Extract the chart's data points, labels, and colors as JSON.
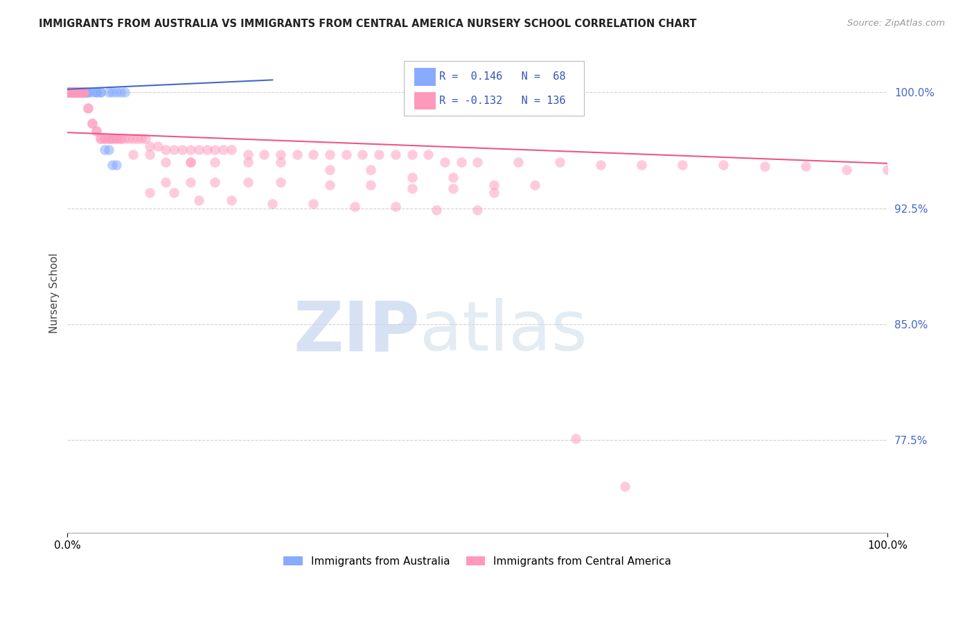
{
  "title": "IMMIGRANTS FROM AUSTRALIA VS IMMIGRANTS FROM CENTRAL AMERICA NURSERY SCHOOL CORRELATION CHART",
  "source": "Source: ZipAtlas.com",
  "ylabel": "Nursery School",
  "xlim": [
    0.0,
    1.0
  ],
  "ylim": [
    0.715,
    1.025
  ],
  "yticks": [
    0.775,
    0.85,
    0.925,
    1.0
  ],
  "ytick_labels": [
    "77.5%",
    "85.0%",
    "92.5%",
    "100.0%"
  ],
  "xticks": [
    0.0,
    1.0
  ],
  "xtick_labels": [
    "0.0%",
    "100.0%"
  ],
  "legend_R1": "0.146",
  "legend_N1": "68",
  "legend_R2": "-0.132",
  "legend_N2": "136",
  "color_blue": "#88AAFF",
  "color_pink": "#FF99BB",
  "trend_blue": "#4466CC",
  "trend_pink": "#EE5588",
  "watermark_zip": "ZIP",
  "watermark_atlas": "atlas",
  "label_australia": "Immigrants from Australia",
  "label_central": "Immigrants from Central America",
  "blue_x": [
    0.001,
    0.001,
    0.002,
    0.002,
    0.003,
    0.003,
    0.004,
    0.004,
    0.005,
    0.005,
    0.006,
    0.006,
    0.007,
    0.007,
    0.008,
    0.008,
    0.009,
    0.009,
    0.01,
    0.01,
    0.011,
    0.012,
    0.013,
    0.014,
    0.015,
    0.016,
    0.017,
    0.018,
    0.019,
    0.02,
    0.021,
    0.022,
    0.001,
    0.001,
    0.002,
    0.003,
    0.004,
    0.005,
    0.006,
    0.007,
    0.008,
    0.009,
    0.01,
    0.011,
    0.012,
    0.013,
    0.014,
    0.015,
    0.016,
    0.017,
    0.02,
    0.025,
    0.03,
    0.035,
    0.04,
    0.018,
    0.025,
    0.035,
    0.04,
    0.05,
    0.055,
    0.06,
    0.065,
    0.07,
    0.045,
    0.05,
    0.055,
    0.06
  ],
  "blue_y": [
    1.0,
    1.0,
    1.0,
    1.0,
    1.0,
    1.0,
    1.0,
    1.0,
    1.0,
    1.0,
    1.0,
    1.0,
    1.0,
    1.0,
    1.0,
    1.0,
    1.0,
    1.0,
    1.0,
    1.0,
    1.0,
    1.0,
    1.0,
    1.0,
    1.0,
    1.0,
    1.0,
    1.0,
    1.0,
    1.0,
    1.0,
    1.0,
    1.0,
    1.0,
    1.0,
    1.0,
    1.0,
    1.0,
    1.0,
    1.0,
    1.0,
    1.0,
    1.0,
    1.0,
    1.0,
    1.0,
    1.0,
    1.0,
    1.0,
    1.0,
    1.0,
    1.0,
    1.0,
    1.0,
    1.0,
    1.0,
    1.0,
    1.0,
    1.0,
    1.0,
    1.0,
    1.0,
    1.0,
    1.0,
    0.963,
    0.963,
    0.953,
    0.953
  ],
  "pink_x": [
    0.001,
    0.001,
    0.002,
    0.002,
    0.003,
    0.003,
    0.004,
    0.004,
    0.005,
    0.005,
    0.006,
    0.006,
    0.007,
    0.007,
    0.008,
    0.008,
    0.009,
    0.009,
    0.01,
    0.01,
    0.011,
    0.011,
    0.012,
    0.012,
    0.013,
    0.013,
    0.014,
    0.014,
    0.015,
    0.015,
    0.016,
    0.016,
    0.017,
    0.017,
    0.018,
    0.018,
    0.019,
    0.019,
    0.02,
    0.02,
    0.025,
    0.025,
    0.03,
    0.03,
    0.035,
    0.035,
    0.04,
    0.04,
    0.045,
    0.045,
    0.05,
    0.05,
    0.055,
    0.055,
    0.06,
    0.06,
    0.065,
    0.065,
    0.07,
    0.075,
    0.08,
    0.085,
    0.09,
    0.095,
    0.1,
    0.11,
    0.12,
    0.13,
    0.14,
    0.15,
    0.16,
    0.17,
    0.18,
    0.19,
    0.2,
    0.22,
    0.24,
    0.26,
    0.28,
    0.3,
    0.32,
    0.34,
    0.36,
    0.38,
    0.4,
    0.42,
    0.44,
    0.46,
    0.48,
    0.5,
    0.55,
    0.6,
    0.65,
    0.7,
    0.75,
    0.8,
    0.85,
    0.9,
    0.95,
    1.0,
    0.15,
    0.18,
    0.22,
    0.26,
    0.32,
    0.37,
    0.42,
    0.47,
    0.52,
    0.57,
    0.12,
    0.15,
    0.18,
    0.22,
    0.26,
    0.32,
    0.37,
    0.42,
    0.47,
    0.52,
    0.1,
    0.13,
    0.16,
    0.2,
    0.25,
    0.3,
    0.35,
    0.4,
    0.45,
    0.5,
    0.62,
    0.68,
    0.08,
    0.1,
    0.12,
    0.15
  ],
  "pink_y": [
    1.0,
    1.0,
    1.0,
    1.0,
    1.0,
    1.0,
    1.0,
    1.0,
    1.0,
    1.0,
    1.0,
    1.0,
    1.0,
    1.0,
    1.0,
    1.0,
    1.0,
    1.0,
    1.0,
    1.0,
    1.0,
    1.0,
    1.0,
    1.0,
    1.0,
    1.0,
    1.0,
    1.0,
    1.0,
    1.0,
    1.0,
    1.0,
    1.0,
    1.0,
    1.0,
    1.0,
    1.0,
    1.0,
    1.0,
    1.0,
    0.99,
    0.99,
    0.98,
    0.98,
    0.975,
    0.975,
    0.97,
    0.97,
    0.97,
    0.97,
    0.97,
    0.97,
    0.97,
    0.97,
    0.97,
    0.97,
    0.97,
    0.97,
    0.97,
    0.97,
    0.97,
    0.97,
    0.97,
    0.97,
    0.965,
    0.965,
    0.963,
    0.963,
    0.963,
    0.963,
    0.963,
    0.963,
    0.963,
    0.963,
    0.963,
    0.96,
    0.96,
    0.96,
    0.96,
    0.96,
    0.96,
    0.96,
    0.96,
    0.96,
    0.96,
    0.96,
    0.96,
    0.955,
    0.955,
    0.955,
    0.955,
    0.955,
    0.953,
    0.953,
    0.953,
    0.953,
    0.952,
    0.952,
    0.95,
    0.95,
    0.955,
    0.955,
    0.955,
    0.955,
    0.95,
    0.95,
    0.945,
    0.945,
    0.94,
    0.94,
    0.942,
    0.942,
    0.942,
    0.942,
    0.942,
    0.94,
    0.94,
    0.938,
    0.938,
    0.935,
    0.935,
    0.935,
    0.93,
    0.93,
    0.928,
    0.928,
    0.926,
    0.926,
    0.924,
    0.924,
    0.776,
    0.745,
    0.96,
    0.96,
    0.955,
    0.955
  ]
}
